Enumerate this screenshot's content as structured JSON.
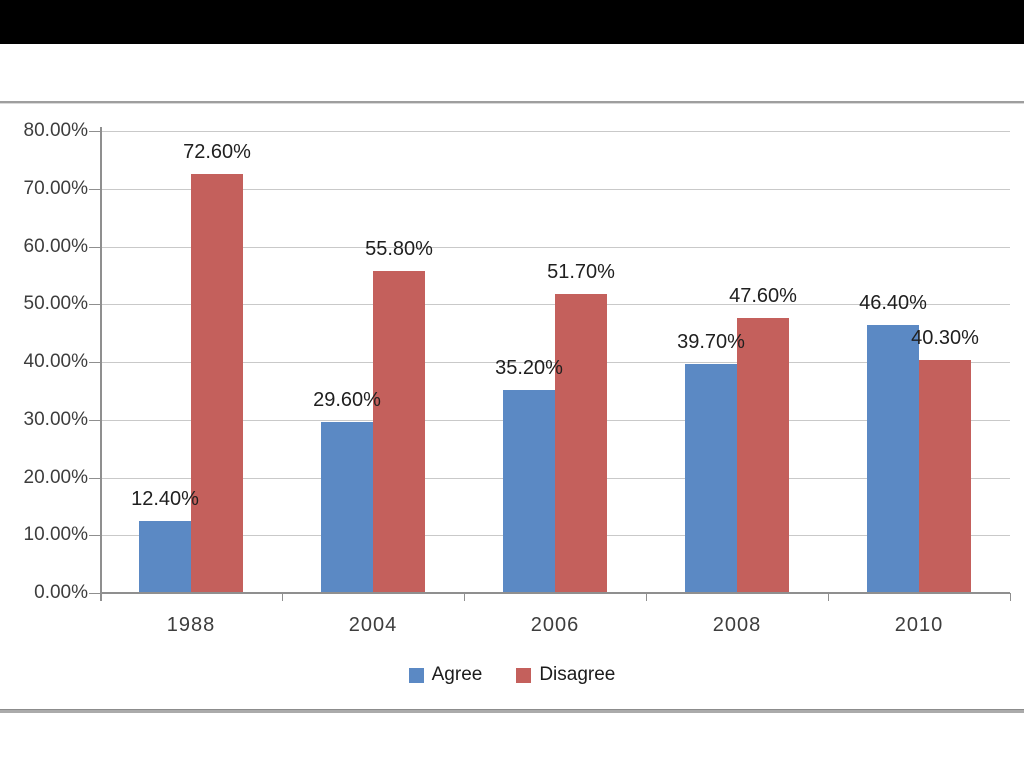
{
  "page": {
    "background_color": "#ffffff",
    "top_bar_color": "#000000",
    "divider_color": "#a3a3a3"
  },
  "chart_data": {
    "type": "bar",
    "title": "",
    "xlabel": "",
    "ylabel": "",
    "categories": [
      "1988",
      "2004",
      "2006",
      "2008",
      "2010"
    ],
    "series": [
      {
        "name": "Agree",
        "color": "#5b89c4",
        "values": [
          12.4,
          29.6,
          35.2,
          39.7,
          46.4
        ],
        "labels": [
          "12.40%",
          "29.60%",
          "35.20%",
          "39.70%",
          "46.40%"
        ]
      },
      {
        "name": "Disagree",
        "color": "#c4605c",
        "values": [
          72.6,
          55.8,
          51.7,
          47.6,
          40.3
        ],
        "labels": [
          "72.60%",
          "55.80%",
          "51.70%",
          "47.60%",
          "40.30%"
        ]
      }
    ],
    "y_ticks": [
      "0.00%",
      "10.00%",
      "20.00%",
      "30.00%",
      "40.00%",
      "50.00%",
      "60.00%",
      "70.00%",
      "80.00%"
    ],
    "ylim": [
      0,
      80
    ],
    "y_step": 10,
    "grid": true,
    "legend_position": "bottom"
  },
  "legend": {
    "items": [
      {
        "label": "Agree",
        "color": "#5b89c4"
      },
      {
        "label": "Disagree",
        "color": "#c4605c"
      }
    ]
  }
}
